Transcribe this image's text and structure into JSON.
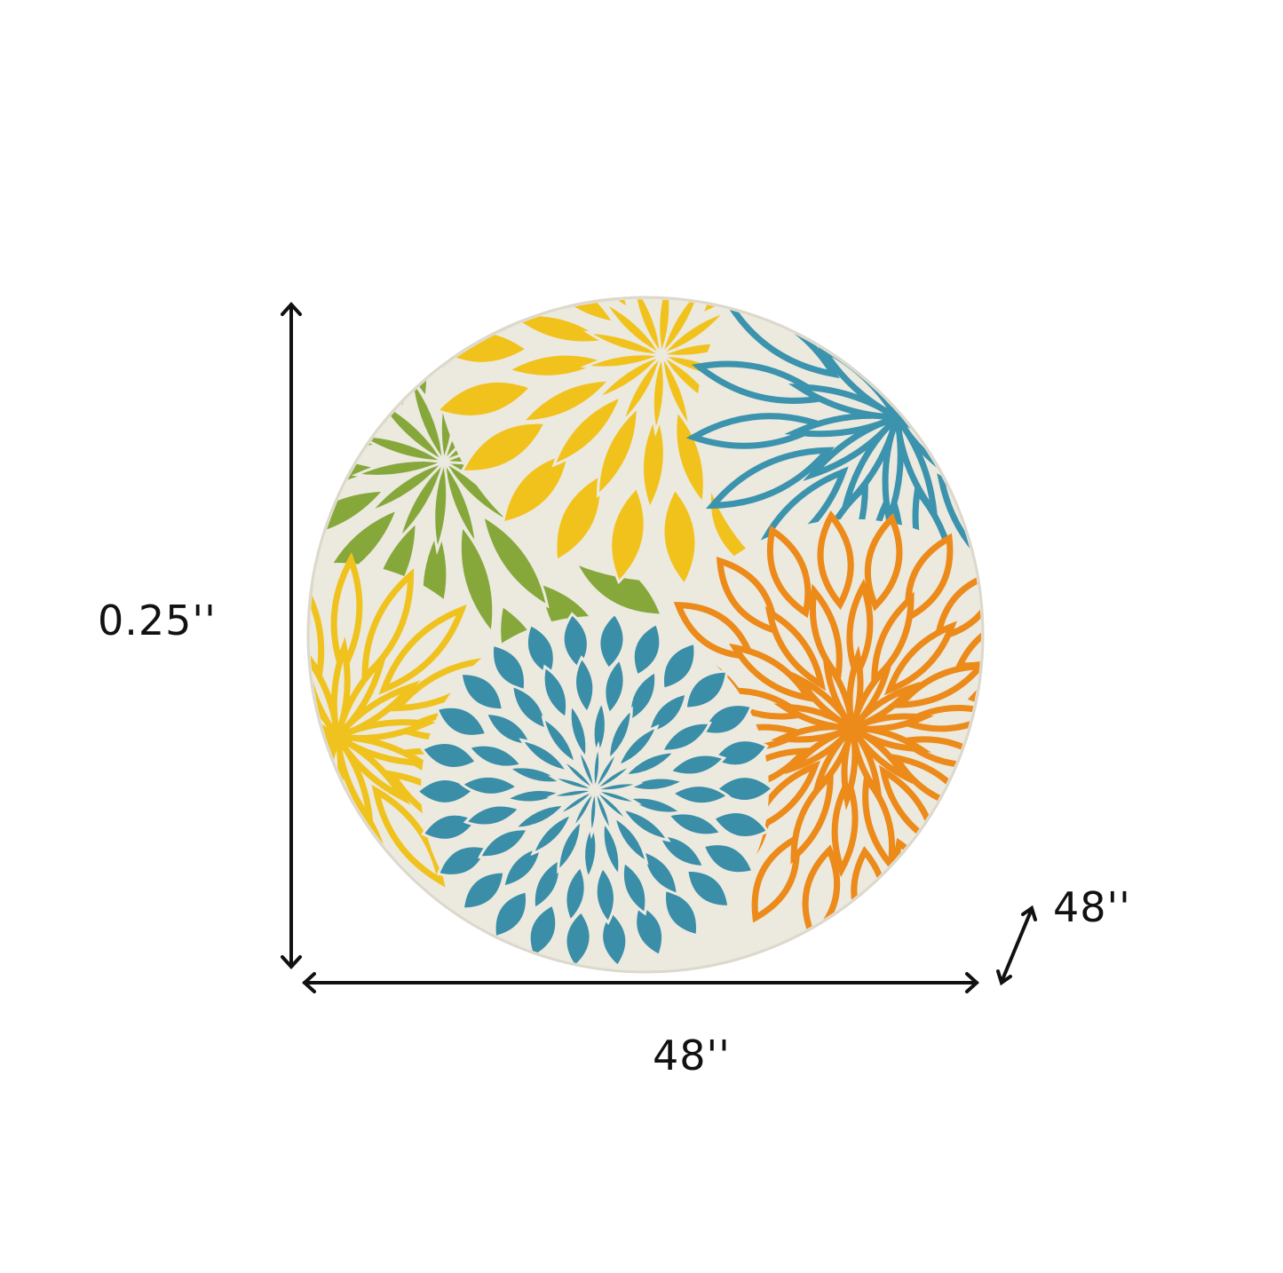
{
  "dimensions": {
    "height_label": "0.25''",
    "width_label": "48''",
    "depth_label": "48''"
  },
  "rug": {
    "shape": "round",
    "background_color": "#ece9df",
    "flowers": [
      {
        "name": "green",
        "color": "#86a83a"
      },
      {
        "name": "yellow-top",
        "color": "#f2c21c"
      },
      {
        "name": "blue-top-right",
        "color": "#3b93ad"
      },
      {
        "name": "yellow-left",
        "color": "#f0c21e"
      },
      {
        "name": "blue-center",
        "color": "#3a8ea8"
      },
      {
        "name": "orange",
        "color": "#ec8a1a"
      }
    ]
  },
  "arrow_color": "#111111"
}
